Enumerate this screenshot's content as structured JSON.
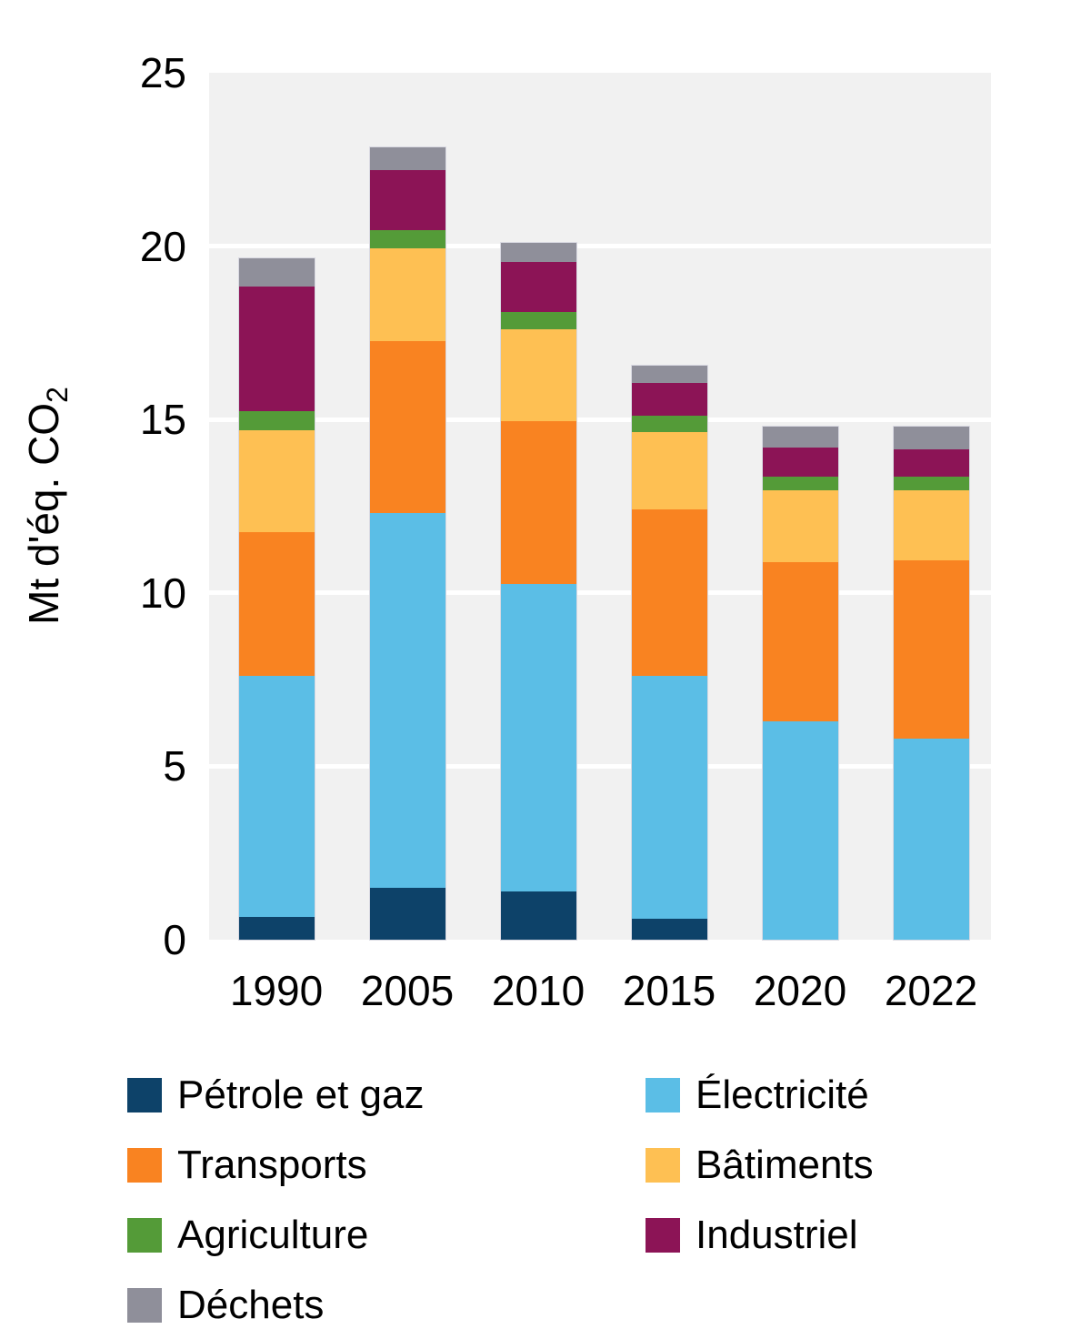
{
  "chart_data": {
    "type": "bar",
    "stacked": true,
    "title": "",
    "xlabel": "",
    "ylabel": "Mt d'éq. CO2",
    "ylabel_prefix": "Mt d'éq. CO",
    "ylabel_sub": "2",
    "categories": [
      "1990",
      "2005",
      "2010",
      "2015",
      "2020",
      "2022"
    ],
    "y_ticks": [
      0,
      5,
      10,
      15,
      20,
      25
    ],
    "ylim": [
      0,
      25
    ],
    "grid": "horizontal white lines on light-gray panel",
    "legend_position": "bottom, two columns",
    "series": [
      {
        "name": "Pétrole et gaz",
        "color": "#0D4269",
        "values": [
          0.65,
          1.5,
          1.4,
          0.6,
          0,
          0
        ]
      },
      {
        "name": "Électricité",
        "color": "#5BBEE6",
        "values": [
          6.95,
          10.8,
          8.85,
          7.0,
          6.3,
          5.8
        ]
      },
      {
        "name": "Transports",
        "color": "#F98321",
        "values": [
          4.15,
          4.95,
          4.7,
          4.8,
          4.6,
          5.15
        ]
      },
      {
        "name": "Bâtiments",
        "color": "#FEC053",
        "values": [
          2.95,
          2.7,
          2.65,
          2.25,
          2.05,
          2.0
        ]
      },
      {
        "name": "Agriculture",
        "color": "#549B38",
        "values": [
          0.55,
          0.5,
          0.5,
          0.45,
          0.4,
          0.4
        ]
      },
      {
        "name": "Industriel",
        "color": "#8C1456",
        "values": [
          3.6,
          1.75,
          1.45,
          0.95,
          0.85,
          0.8
        ]
      },
      {
        "name": "Déchets",
        "color": "#8F8F9A",
        "values": [
          0.8,
          0.65,
          0.55,
          0.5,
          0.6,
          0.65
        ]
      }
    ],
    "totals": [
      19.65,
      22.85,
      20.1,
      16.55,
      14.8,
      14.8
    ],
    "legend_columns": [
      [
        "Pétrole et gaz",
        "Transports",
        "Agriculture",
        "Déchets"
      ],
      [
        "Électricité",
        "Bâtiments",
        "Industriel"
      ]
    ]
  }
}
